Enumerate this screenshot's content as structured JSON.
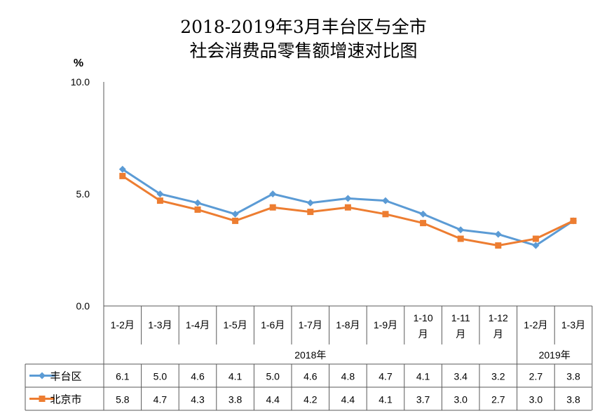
{
  "chart_data": {
    "type": "line",
    "title_lines": [
      "2018-2019年3月丰台区与全市",
      "社会消费品零售额增速对比图"
    ],
    "y_unit": "%",
    "ylim": [
      0,
      10
    ],
    "yticks": [
      "0.0",
      "5.0",
      "10.0"
    ],
    "categories": [
      [
        "1-2月"
      ],
      [
        "1-3月"
      ],
      [
        "1-4月"
      ],
      [
        "1-5月"
      ],
      [
        "1-6月"
      ],
      [
        "1-7月"
      ],
      [
        "1-8月"
      ],
      [
        "1-9月"
      ],
      [
        "1-10",
        "月"
      ],
      [
        "1-11",
        "月"
      ],
      [
        "1-12",
        "月"
      ],
      [
        "1-2月"
      ],
      [
        "1-3月"
      ]
    ],
    "year_groups": [
      {
        "label": "2018年",
        "count": 11
      },
      {
        "label": "2019年",
        "count": 2
      }
    ],
    "series": [
      {
        "name": "丰台区",
        "color": "#5B9BD5",
        "marker": "diamond",
        "values": [
          6.1,
          5.0,
          4.6,
          4.1,
          5.0,
          4.6,
          4.8,
          4.7,
          4.1,
          3.4,
          3.2,
          2.7,
          3.8
        ],
        "labels": [
          "6.1",
          "5.0",
          "4.6",
          "4.1",
          "5.0",
          "4.6",
          "4.8",
          "4.7",
          "4.1",
          "3.4",
          "3.2",
          "2.7",
          "3.8"
        ]
      },
      {
        "name": "北京市",
        "color": "#ED7D31",
        "marker": "square",
        "values": [
          5.8,
          4.7,
          4.3,
          3.8,
          4.4,
          4.2,
          4.4,
          4.1,
          3.7,
          3.0,
          2.7,
          3.0,
          3.8
        ],
        "labels": [
          "5.8",
          "4.7",
          "4.3",
          "3.8",
          "4.4",
          "4.2",
          "4.4",
          "4.1",
          "3.7",
          "3.0",
          "2.7",
          "3.0",
          "3.8"
        ]
      }
    ],
    "grid": false,
    "legend": "data-table"
  }
}
